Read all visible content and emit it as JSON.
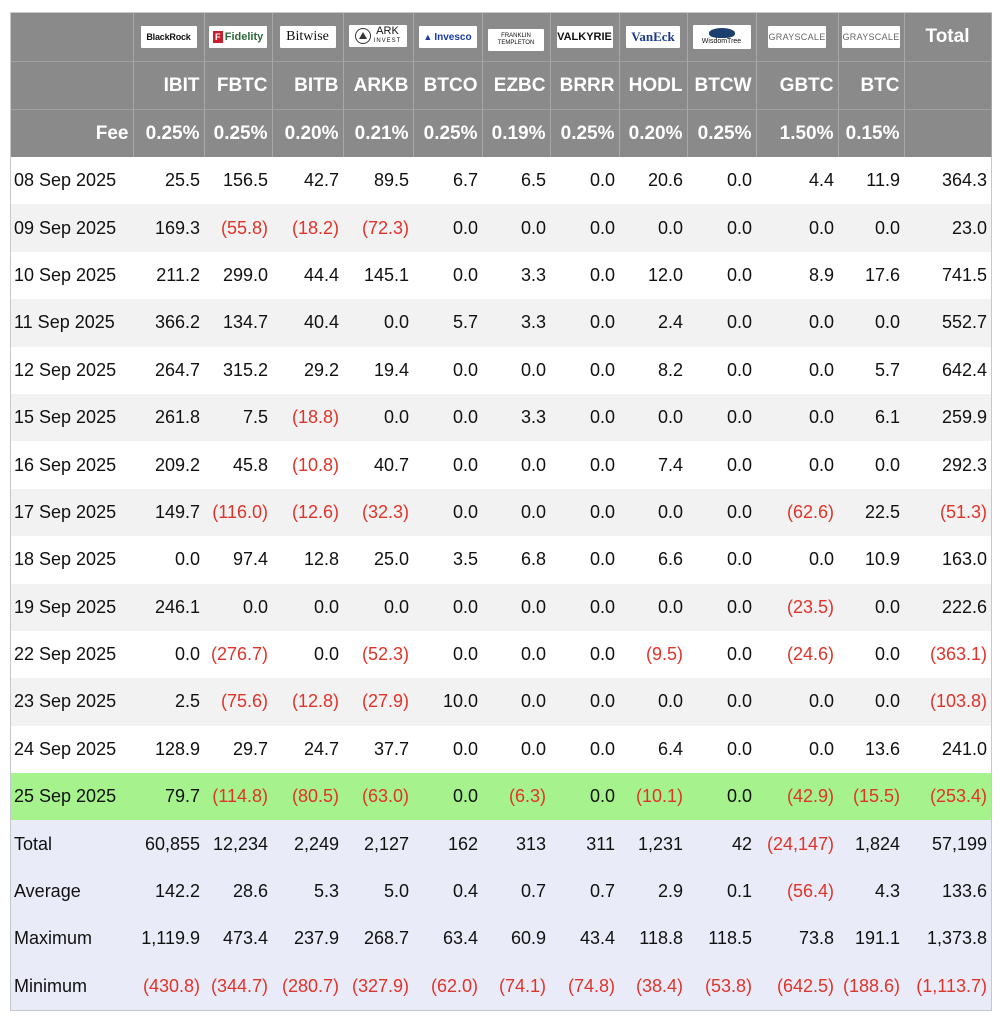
{
  "header": {
    "total_label": "Total",
    "fee_label": "Fee",
    "logos": [
      {
        "icon": "blackrock-logo",
        "text": "BlackRock"
      },
      {
        "icon": "fidelity-logo",
        "text": "Fidelity"
      },
      {
        "icon": "bitwise-logo",
        "text": "Bitwise"
      },
      {
        "icon": "ark-invest-logo",
        "text": "ARK",
        "sub": "INVEST"
      },
      {
        "icon": "invesco-logo",
        "text": "Invesco"
      },
      {
        "icon": "franklin-templeton-logo",
        "text": "FRANKLIN",
        "sub": "TEMPLETON"
      },
      {
        "icon": "valkyrie-logo",
        "text": "VALKYRIE"
      },
      {
        "icon": "vaneck-logo",
        "text": "VanEck"
      },
      {
        "icon": "wisdomtree-logo",
        "text": "WisdomTree"
      },
      {
        "icon": "grayscale-logo",
        "text": "GRAYSCALE"
      },
      {
        "icon": "grayscale-logo",
        "text": "GRAYSCALE"
      }
    ],
    "tickers": [
      "IBIT",
      "FBTC",
      "BITB",
      "ARKB",
      "BTCO",
      "EZBC",
      "BRRR",
      "HODL",
      "BTCW",
      "GBTC",
      "BTC"
    ],
    "fees": [
      "0.25%",
      "0.25%",
      "0.20%",
      "0.21%",
      "0.25%",
      "0.19%",
      "0.25%",
      "0.20%",
      "0.25%",
      "1.50%",
      "0.15%"
    ]
  },
  "rows": [
    {
      "date": "08 Sep 2025",
      "values": [
        "25.5",
        "156.5",
        "42.7",
        "89.5",
        "6.7",
        "6.5",
        "0.0",
        "20.6",
        "0.0",
        "4.4",
        "11.9",
        "364.3"
      ]
    },
    {
      "date": "09 Sep 2025",
      "values": [
        "169.3",
        "(55.8)",
        "(18.2)",
        "(72.3)",
        "0.0",
        "0.0",
        "0.0",
        "0.0",
        "0.0",
        "0.0",
        "0.0",
        "23.0"
      ]
    },
    {
      "date": "10 Sep 2025",
      "values": [
        "211.2",
        "299.0",
        "44.4",
        "145.1",
        "0.0",
        "3.3",
        "0.0",
        "12.0",
        "0.0",
        "8.9",
        "17.6",
        "741.5"
      ]
    },
    {
      "date": "11 Sep 2025",
      "values": [
        "366.2",
        "134.7",
        "40.4",
        "0.0",
        "5.7",
        "3.3",
        "0.0",
        "2.4",
        "0.0",
        "0.0",
        "0.0",
        "552.7"
      ]
    },
    {
      "date": "12 Sep 2025",
      "values": [
        "264.7",
        "315.2",
        "29.2",
        "19.4",
        "0.0",
        "0.0",
        "0.0",
        "8.2",
        "0.0",
        "0.0",
        "5.7",
        "642.4"
      ]
    },
    {
      "date": "15 Sep 2025",
      "values": [
        "261.8",
        "7.5",
        "(18.8)",
        "0.0",
        "0.0",
        "3.3",
        "0.0",
        "0.0",
        "0.0",
        "0.0",
        "6.1",
        "259.9"
      ]
    },
    {
      "date": "16 Sep 2025",
      "values": [
        "209.2",
        "45.8",
        "(10.8)",
        "40.7",
        "0.0",
        "0.0",
        "0.0",
        "7.4",
        "0.0",
        "0.0",
        "0.0",
        "292.3"
      ]
    },
    {
      "date": "17 Sep 2025",
      "values": [
        "149.7",
        "(116.0)",
        "(12.6)",
        "(32.3)",
        "0.0",
        "0.0",
        "0.0",
        "0.0",
        "0.0",
        "(62.6)",
        "22.5",
        "(51.3)"
      ]
    },
    {
      "date": "18 Sep 2025",
      "values": [
        "0.0",
        "97.4",
        "12.8",
        "25.0",
        "3.5",
        "6.8",
        "0.0",
        "6.6",
        "0.0",
        "0.0",
        "10.9",
        "163.0"
      ]
    },
    {
      "date": "19 Sep 2025",
      "values": [
        "246.1",
        "0.0",
        "0.0",
        "0.0",
        "0.0",
        "0.0",
        "0.0",
        "0.0",
        "0.0",
        "(23.5)",
        "0.0",
        "222.6"
      ]
    },
    {
      "date": "22 Sep 2025",
      "values": [
        "0.0",
        "(276.7)",
        "0.0",
        "(52.3)",
        "0.0",
        "0.0",
        "0.0",
        "(9.5)",
        "0.0",
        "(24.6)",
        "0.0",
        "(363.1)"
      ]
    },
    {
      "date": "23 Sep 2025",
      "values": [
        "2.5",
        "(75.6)",
        "(12.8)",
        "(27.9)",
        "10.0",
        "0.0",
        "0.0",
        "0.0",
        "0.0",
        "0.0",
        "0.0",
        "(103.8)"
      ]
    },
    {
      "date": "24 Sep 2025",
      "values": [
        "128.9",
        "29.7",
        "24.7",
        "37.7",
        "0.0",
        "0.0",
        "0.0",
        "6.4",
        "0.0",
        "0.0",
        "13.6",
        "241.0"
      ]
    },
    {
      "date": "25 Sep 2025",
      "highlight": true,
      "values": [
        "79.7",
        "(114.8)",
        "(80.5)",
        "(63.0)",
        "0.0",
        "(6.3)",
        "0.0",
        "(10.1)",
        "0.0",
        "(42.9)",
        "(15.5)",
        "(253.4)"
      ]
    }
  ],
  "summary": [
    {
      "label": "Total",
      "values": [
        "60,855",
        "12,234",
        "2,249",
        "2,127",
        "162",
        "313",
        "311",
        "1,231",
        "42",
        "(24,147)",
        "1,824",
        "57,199"
      ]
    },
    {
      "label": "Average",
      "values": [
        "142.2",
        "28.6",
        "5.3",
        "5.0",
        "0.4",
        "0.7",
        "0.7",
        "2.9",
        "0.1",
        "(56.4)",
        "4.3",
        "133.6"
      ]
    },
    {
      "label": "Maximum",
      "values": [
        "1,119.9",
        "473.4",
        "237.9",
        "268.7",
        "63.4",
        "60.9",
        "43.4",
        "118.8",
        "118.5",
        "73.8",
        "191.1",
        "1,373.8"
      ]
    },
    {
      "label": "Minimum",
      "values": [
        "(430.8)",
        "(344.7)",
        "(280.7)",
        "(327.9)",
        "(62.0)",
        "(74.1)",
        "(74.8)",
        "(38.4)",
        "(53.8)",
        "(642.5)",
        "(188.6)",
        "(1,113.7)"
      ]
    }
  ],
  "colors": {
    "header_bg": "#8a8a8a",
    "negative": "#e0332a",
    "highlight": "#a6f28c",
    "summary_bg": "#e9ecf8"
  }
}
